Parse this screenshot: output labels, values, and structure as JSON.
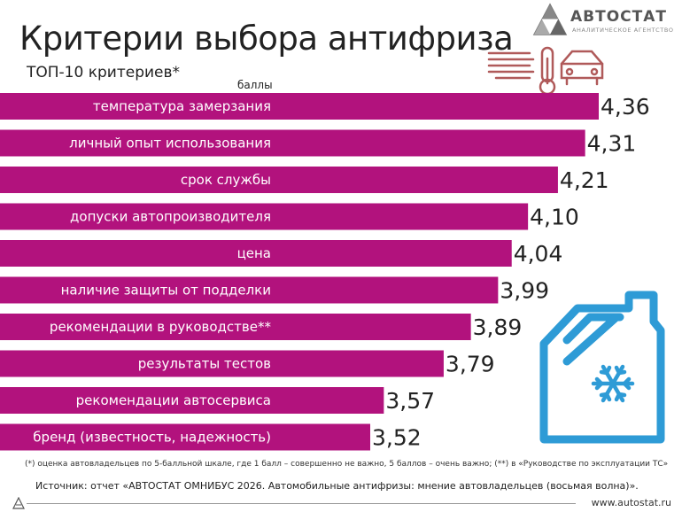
{
  "header": {
    "title": "Критерии выбора антифриза",
    "subtitle": "ТОП-10 критериев*",
    "units": "баллы"
  },
  "logo": {
    "name": "АВТОСТАТ",
    "tagline": "аналитическое агентство"
  },
  "icons": [
    "avtostat-logo-icon",
    "thermometer-car-icon",
    "antifreeze-canister-snowflake-icon"
  ],
  "colors": {
    "bar": "#b2127d",
    "icon_thermo": "#b05a5a",
    "icon_canister": "#2e9bd6"
  },
  "chart_data": {
    "type": "bar",
    "orientation": "horizontal",
    "categories": [
      "температура замерзания",
      "личный опыт использования",
      "срок службы",
      "допуски автопроизводителя",
      "цена",
      "наличие защиты от подделки",
      "рекомендации в руководстве**",
      "результаты тестов",
      "рекомендации автосервиса",
      "бренд (известность, надежность)"
    ],
    "values": [
      4.36,
      4.31,
      4.21,
      4.1,
      4.04,
      3.99,
      3.89,
      3.79,
      3.57,
      3.52
    ],
    "value_labels": [
      "4,36",
      "4,31",
      "4,21",
      "4,10",
      "4,04",
      "3,99",
      "3,89",
      "3,79",
      "3,57",
      "3,52"
    ],
    "ylabel": "баллы"
  },
  "footnote": "(*) оценка автовладельцев по 5-балльной шкале, где 1 балл – совершенно не важно, 5 баллов – очень важно;  (**) в «Руководстве по эксплуатации ТС»",
  "source": "Источник: отчет «АВТОСТАТ ОМНИБУС 2026. Автомобильные антифризы: мнение автовладельцев (восьмая волна)».",
  "site": "www.autostat.ru"
}
